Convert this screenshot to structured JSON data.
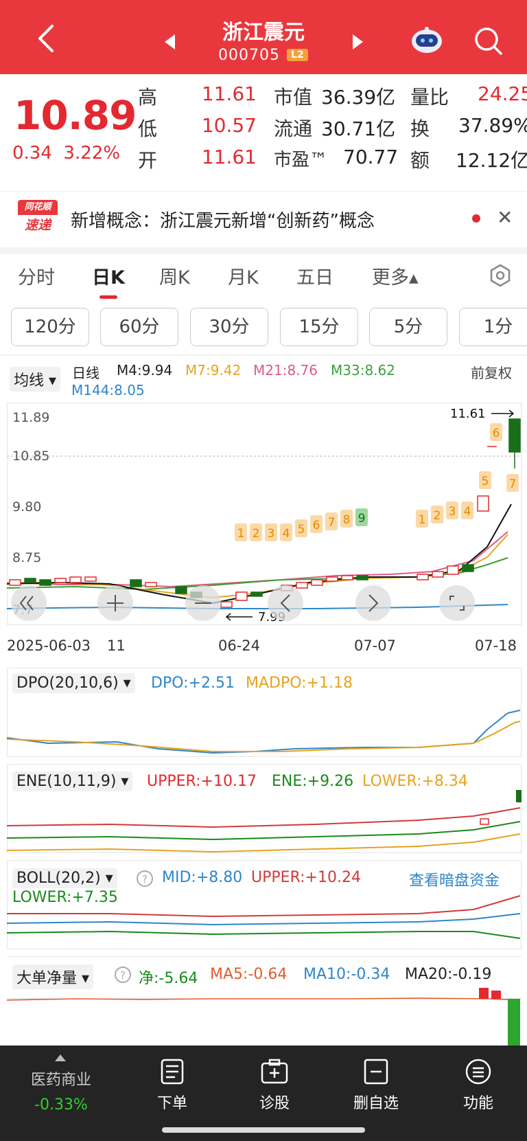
{
  "header": {
    "title": "浙江震元",
    "code": "000705",
    "badge": "L2"
  },
  "quote": {
    "price": "10.89",
    "change": "0.34",
    "change_pct": "3.22%",
    "rows": [
      {
        "l1": "高",
        "v1": "11.61",
        "l2": "市值",
        "v2": "36.39亿",
        "l3": "量比",
        "v3": "24.25"
      },
      {
        "l1": "低",
        "v1": "10.57",
        "l2": "流通",
        "v2": "30.71亿",
        "l3": "换",
        "v3": "37.89%"
      },
      {
        "l1": "开",
        "v1": "11.61",
        "l2": "市盈™",
        "v2": "70.77",
        "l3": "额",
        "v3": "12.12亿"
      }
    ]
  },
  "news": {
    "logo_top": "同花顺",
    "logo_bottom": "速递",
    "text": "新增概念：浙江震元新增“创新药”概念"
  },
  "tabs": [
    "分时",
    "日K",
    "周K",
    "月K",
    "五日",
    "更多▴"
  ],
  "intervals": [
    "120分",
    "60分",
    "30分",
    "15分",
    "5分",
    "1分"
  ],
  "ma_legend": {
    "selector": "均线",
    "period": "日线",
    "m4": "M4:9.94",
    "m7": "M7:9.42",
    "m21": "M21:8.76",
    "m33": "M33:8.62",
    "m144": "M144:8.05",
    "adjust": "前复权"
  },
  "kline": {
    "y_labels": [
      "11.89",
      "10.85",
      "9.80",
      "8.75",
      "7.7"
    ],
    "x_labels": [
      "2025-06-03",
      "11",
      "06-24",
      "07-07",
      "07-18"
    ],
    "high_marker": "11.61",
    "low_marker": "7.99",
    "nine_count_1": [
      "1",
      "2",
      "3",
      "4",
      "5",
      "6",
      "7",
      "8",
      "9"
    ],
    "nine_count_2": [
      "1",
      "2",
      "3",
      "4",
      "5",
      "6",
      "7"
    ]
  },
  "dpo": {
    "selector": "DPO(20,10,6)",
    "dpo": "DPO:+2.51",
    "madpo": "MADPO:+1.18"
  },
  "ene": {
    "selector": "ENE(10,11,9)",
    "upper": "UPPER:+10.17",
    "ene": "ENE:+9.26",
    "lower": "LOWER:+8.34"
  },
  "boll": {
    "selector": "BOLL(20,2)",
    "mid": "MID:+8.80",
    "upper": "UPPER:+10.24",
    "lower": "LOWER:+7.35",
    "link": "查看暗盘资金"
  },
  "bigorder": {
    "selector": "大单净量",
    "net": "净:-5.64",
    "ma5": "MA5:-0.64",
    "ma10": "MA10:-0.34",
    "ma20": "MA20:-0.19"
  },
  "bottombar": {
    "sector": "医药商业",
    "sector_change": "-0.33%",
    "items": [
      "下单",
      "诊股",
      "删自选",
      "功能"
    ]
  },
  "colors": {
    "red": "#e3292f",
    "green": "#1a8a1a",
    "orange": "#e6a31f",
    "pink": "#e05b7f",
    "blue": "#2e86c8"
  }
}
